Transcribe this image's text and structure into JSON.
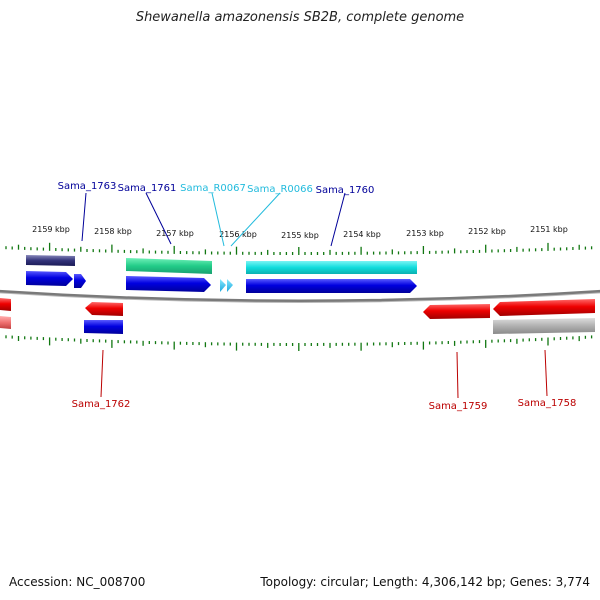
{
  "title": "Shewanella amazonensis SB2B, complete genome",
  "footer": {
    "accession": "Accession: NC_008700",
    "topology": "Topology: circular; Length: 4,306,142 bp; Genes: 3,774"
  },
  "scale": {
    "labels": [
      "2159 kbp",
      "2158 kbp",
      "2157 kbp",
      "2156 kbp",
      "2155 kbp",
      "2154 kbp",
      "2153 kbp",
      "2152 kbp",
      "2151 kbp"
    ]
  },
  "genes": {
    "top": [
      "Sama_1763",
      "Sama_1761",
      "Sama_R0067",
      "Sama_R0066",
      "Sama_1760"
    ],
    "bottom": [
      "Sama_1762",
      "Sama_1759",
      "Sama_1758"
    ]
  },
  "colors": {
    "forward_cds": "#0000dd",
    "reverse_cds": "#ee0000",
    "rna": "#22bbee",
    "top_label": "#000099",
    "rna_label": "#22bbdd",
    "bottom_label": "#bb0000",
    "tick": "#117711",
    "backbone": "#808080"
  }
}
